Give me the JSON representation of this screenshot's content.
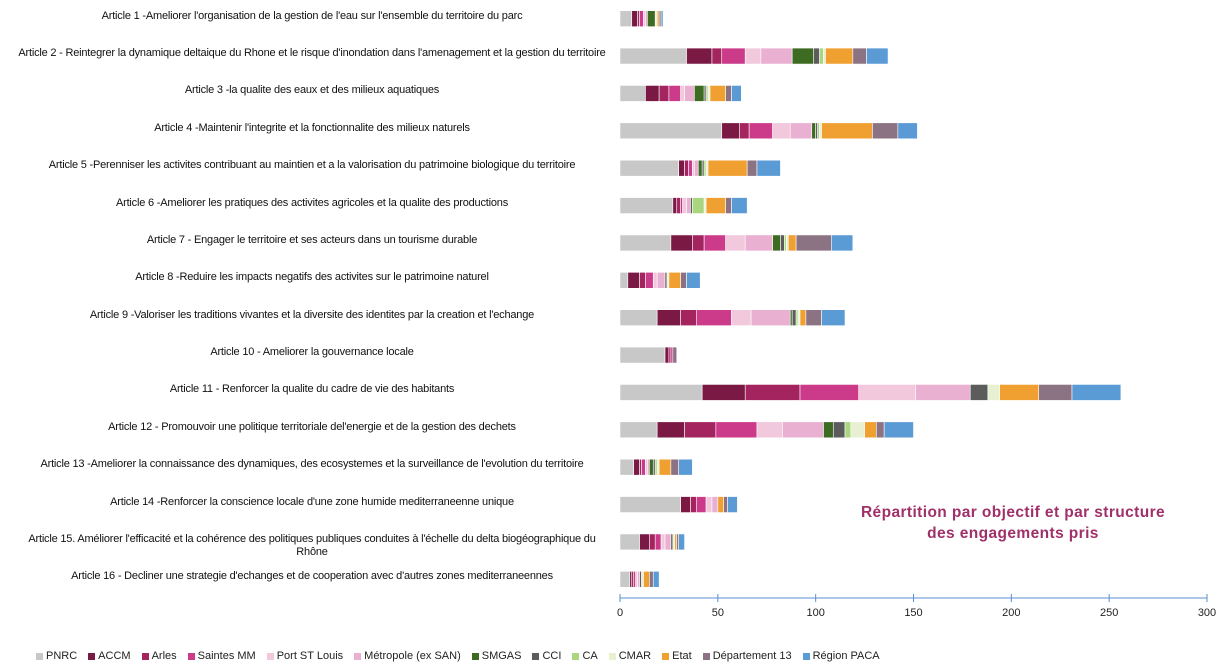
{
  "chart_data": {
    "type": "stacked_barh",
    "annotation": "Répartition par objectif et par structure des engagements pris",
    "categories": [
      "Article 1 -Ameliorer l'organisation de la gestion de l'eau sur l'ensemble du territoire du parc",
      "Article 2 - Reintegrer la dynamique deltaique du Rhone et le risque d'inondation dans l'amenagement et la gestion du territoire",
      "Article 3 -la qualite des eaux et des milieux aquatiques",
      "Article 4 -Maintenir l'integrite et la fonctionnalite des milieux naturels",
      "Article 5 -Perenniser les activites contribuant au maintien et a la valorisation du patrimoine biologique du territoire",
      "Article 6 -Ameliorer les pratiques des activites agricoles et la qualite des productions",
      "Article 7 - Engager le territoire et ses acteurs dans un tourisme durable",
      "Article 8 -Reduire les impacts negatifs des activites sur le patrimoine naturel",
      "Article 9 -Valoriser les traditions vivantes et la diversite des identites par la creation et l'echange",
      "Article 10 - Ameliorer la gouvernance locale",
      "Article 11 - Renforcer la qualite du cadre de vie des habitants",
      "Article 12 - Promouvoir une politique territoriale del'energie et de la gestion des dechets",
      "Article 13 -Ameliorer la connaissance des dynamiques, des ecosystemes et la surveillance de l'evolution du territoire",
      "Article 14 -Renforcer la conscience locale d'une zone humide mediterraneenne unique",
      "Article 15. Améliorer l'efficacité et la cohérence des politiques publiques conduites à l'échelle du delta biogéographique du Rhône",
      "Article 16 - Decliner une strategie d'echanges et de cooperation avec d'autres zones mediterraneennes"
    ],
    "series": [
      {
        "name": "PNRC",
        "color": "#c8c8c8",
        "values": [
          6,
          34,
          13,
          52,
          30,
          27,
          26,
          4,
          19,
          23,
          42,
          19,
          7,
          31,
          10,
          5
        ]
      },
      {
        "name": "ACCM",
        "color": "#7a1a44",
        "values": [
          3,
          13,
          7,
          9,
          3,
          2,
          11,
          6,
          12,
          2,
          22,
          14,
          3,
          5,
          5,
          1
        ]
      },
      {
        "name": "Arles",
        "color": "#a3245e",
        "values": [
          1,
          5,
          5,
          5,
          2,
          2,
          6,
          3,
          8,
          1,
          28,
          16,
          1,
          3,
          3,
          1
        ]
      },
      {
        "name": "Saintes MM",
        "color": "#cc3a8a",
        "values": [
          2,
          12,
          6,
          12,
          2,
          1,
          11,
          4,
          18,
          1,
          30,
          21,
          2,
          5,
          3,
          1
        ]
      },
      {
        "name": "Port ST Louis",
        "color": "#f2c8dc",
        "values": [
          1,
          8,
          2,
          9,
          1,
          2,
          10,
          2,
          10,
          0,
          29,
          13,
          1,
          3,
          2,
          1
        ]
      },
      {
        "name": "Métropole (ex SAN)",
        "color": "#eab0d2",
        "values": [
          1,
          16,
          5,
          11,
          2,
          2,
          14,
          4,
          20,
          0,
          28,
          21,
          1,
          3,
          3,
          1
        ]
      },
      {
        "name": "SMGAS",
        "color": "#3d6b22",
        "values": [
          4,
          11,
          5,
          2,
          2,
          0,
          4,
          0,
          1,
          0,
          0,
          5,
          2,
          0,
          0,
          0
        ]
      },
      {
        "name": "CCI",
        "color": "#5c5c5c",
        "values": [
          0,
          3,
          1,
          1,
          1,
          1,
          2,
          1,
          2,
          0,
          9,
          6,
          1,
          0,
          1,
          1
        ]
      },
      {
        "name": "CA",
        "color": "#a9d67e",
        "values": [
          0,
          2,
          1,
          1,
          1,
          6,
          1,
          0,
          1,
          0,
          0,
          3,
          1,
          0,
          0,
          0
        ]
      },
      {
        "name": "CMAR",
        "color": "#e8f0d2",
        "values": [
          1,
          1,
          1,
          1,
          1,
          1,
          1,
          1,
          1,
          0,
          6,
          7,
          1,
          0,
          1,
          1
        ]
      },
      {
        "name": "Etat",
        "color": "#f0a030",
        "values": [
          1,
          14,
          8,
          26,
          20,
          10,
          4,
          6,
          3,
          0,
          20,
          6,
          6,
          3,
          1,
          3
        ]
      },
      {
        "name": "Département 13",
        "color": "#8c7384",
        "values": [
          1,
          7,
          3,
          13,
          5,
          3,
          18,
          3,
          8,
          2,
          17,
          4,
          4,
          2,
          1,
          2
        ]
      },
      {
        "name": "Région PACA",
        "color": "#5b9bd5",
        "values": [
          1,
          11,
          5,
          10,
          12,
          8,
          11,
          7,
          12,
          0,
          25,
          15,
          7,
          5,
          3,
          3
        ]
      }
    ],
    "xlim": [
      0,
      300
    ],
    "xticks": [
      0,
      50,
      100,
      150,
      200,
      250,
      300
    ],
    "axis_color": "#5b8fd0",
    "annotation_color": "#a0306a"
  }
}
